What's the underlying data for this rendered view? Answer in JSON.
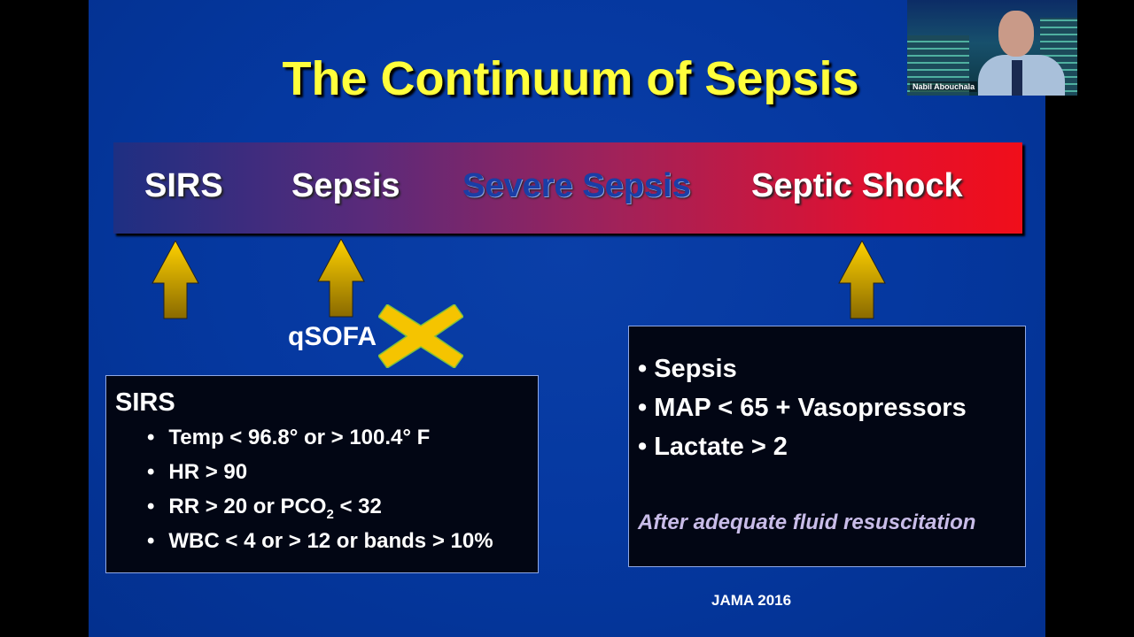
{
  "slide": {
    "title": "The Continuum of Sepsis",
    "stages": [
      "SIRS",
      "Sepsis",
      "Severe Sepsis",
      "Septic Shock"
    ],
    "qsofa_label": "qSOFA",
    "sirs_box": {
      "heading": "SIRS",
      "criteria": [
        "Temp < 96.8° or  > 100.4° F",
        "HR > 90",
        "RR > 20 or PCO",
        "WBC < 4 or > 12 or bands > 10%"
      ],
      "pco_sub": "2",
      "pco_tail": " < 32"
    },
    "shock_box": {
      "criteria": [
        "Sepsis",
        "MAP < 65 + Vasopressors",
        "Lactate > 2"
      ],
      "note": "After adequate fluid resuscitation"
    },
    "reference": "JAMA 2016",
    "colors": {
      "title": "#ffff3c",
      "arrow": "#f5c400",
      "bar_start": "#1e2f82",
      "bar_end": "#f00e1a"
    }
  },
  "video": {
    "participant_name": "Nabil Abouchala"
  }
}
